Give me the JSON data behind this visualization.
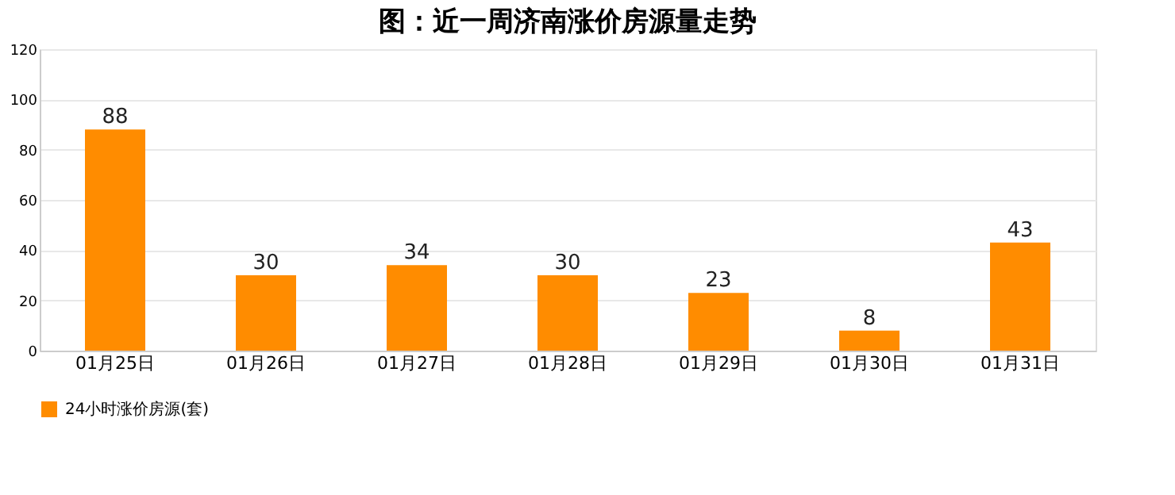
{
  "chart_data": {
    "type": "bar",
    "title": "图：近一周济南涨价房源量走势",
    "categories": [
      "01月25日",
      "01月26日",
      "01月27日",
      "01月28日",
      "01月29日",
      "01月30日",
      "01月31日"
    ],
    "series": [
      {
        "name": "24小时涨价房源(套)",
        "color": "#ff8c00",
        "values": [
          88,
          30,
          34,
          30,
          23,
          8,
          43
        ]
      }
    ],
    "ylim": [
      0,
      120
    ],
    "yticks": [
      0,
      20,
      40,
      60,
      80,
      100,
      120
    ],
    "grid": "y",
    "legend": "bottom",
    "data_labels": true
  }
}
